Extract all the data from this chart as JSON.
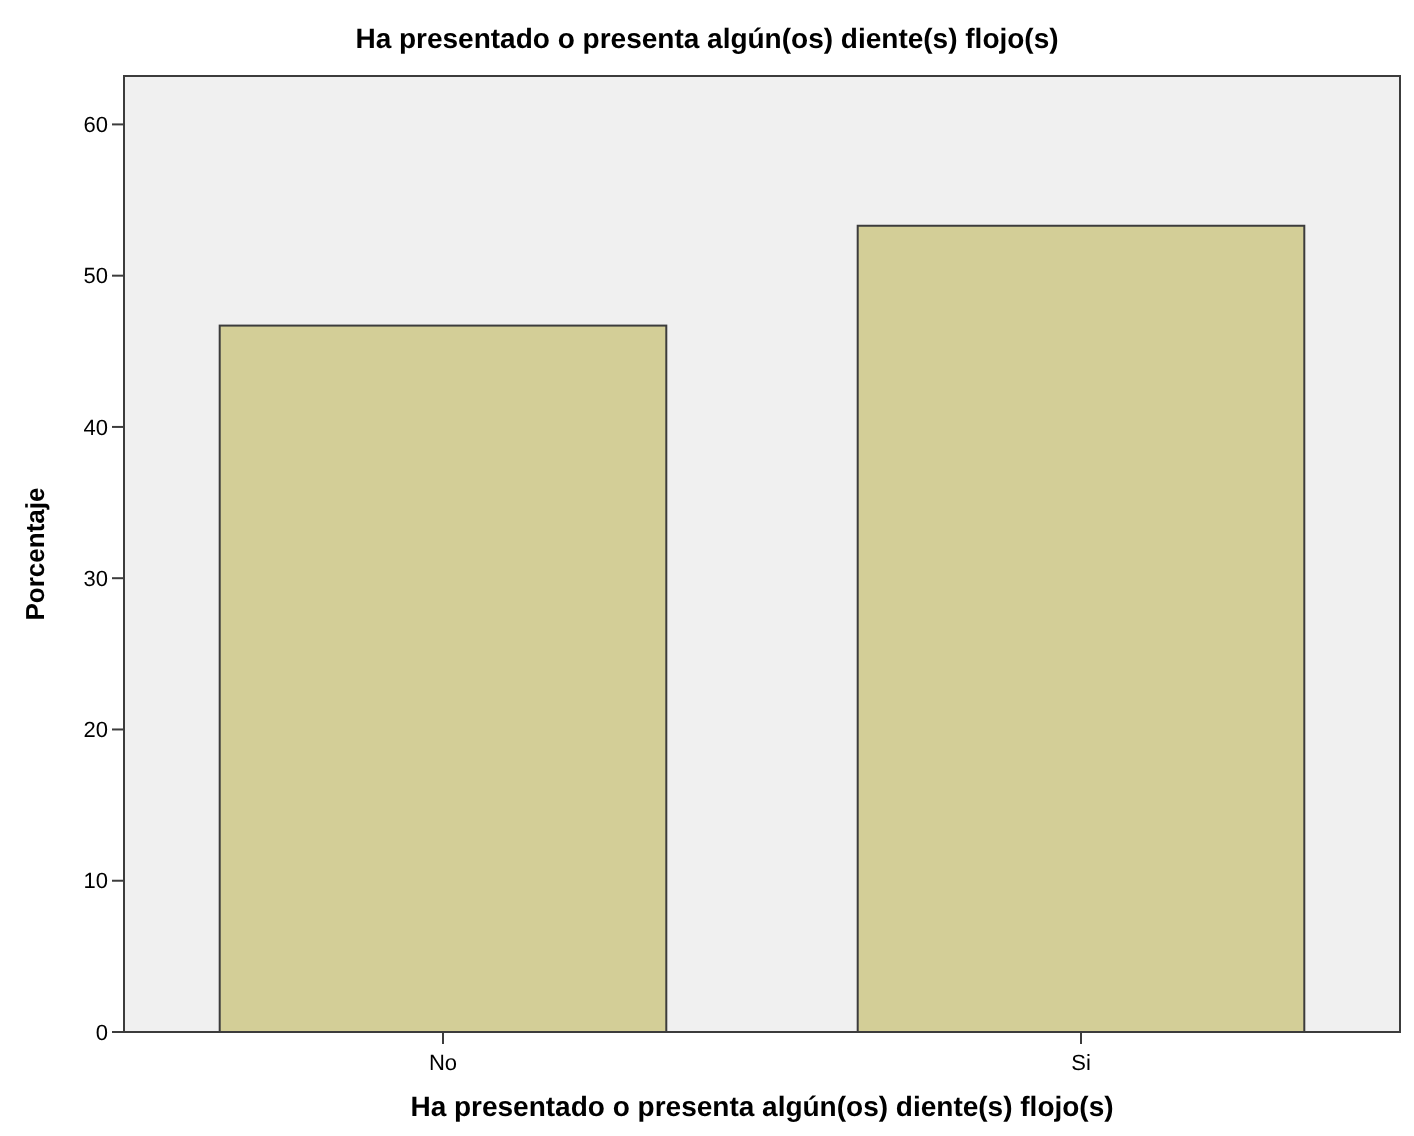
{
  "chart_data": {
    "type": "bar",
    "title": "Ha presentado o presenta algún(os) diente(s) flojo(s)",
    "xlabel": "Ha presentado o presenta algún(os) diente(s) flojo(s)",
    "ylabel": "Porcentaje",
    "categories": [
      "No",
      "Si"
    ],
    "values": [
      46.7,
      53.3
    ],
    "color": "#d3ce97",
    "ylim": [
      0,
      63.2
    ],
    "yticks": [
      0,
      10,
      20,
      30,
      40,
      50,
      60
    ],
    "grid": false
  }
}
